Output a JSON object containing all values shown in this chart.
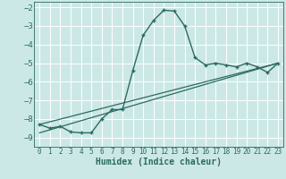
{
  "xlabel": "Humidex (Indice chaleur)",
  "background_color": "#cce8e6",
  "line_color": "#2a6b60",
  "grid_color": "#b8d8d5",
  "xlim": [
    -0.5,
    23.5
  ],
  "ylim": [
    -9.5,
    -1.7
  ],
  "yticks": [
    -9,
    -8,
    -7,
    -6,
    -5,
    -4,
    -3,
    -2
  ],
  "xticks": [
    0,
    1,
    2,
    3,
    4,
    5,
    6,
    7,
    8,
    9,
    10,
    11,
    12,
    13,
    14,
    15,
    16,
    17,
    18,
    19,
    20,
    21,
    22,
    23
  ],
  "main_x": [
    0,
    1,
    2,
    3,
    4,
    5,
    6,
    7,
    8,
    9,
    10,
    11,
    12,
    13,
    14,
    15,
    16,
    17,
    18,
    19,
    20,
    21,
    22,
    23
  ],
  "main_y": [
    -8.3,
    -8.5,
    -8.4,
    -8.7,
    -8.75,
    -8.75,
    -8.0,
    -7.5,
    -7.5,
    -5.4,
    -3.5,
    -2.7,
    -2.15,
    -2.2,
    -3.0,
    -4.7,
    -5.1,
    -5.0,
    -5.1,
    -5.2,
    -5.0,
    -5.2,
    -5.5,
    -5.0
  ],
  "line1_x": [
    0,
    23
  ],
  "line1_y": [
    -8.3,
    -5.0
  ],
  "line2_x": [
    0,
    23
  ],
  "line2_y": [
    -8.75,
    -5.0
  ]
}
